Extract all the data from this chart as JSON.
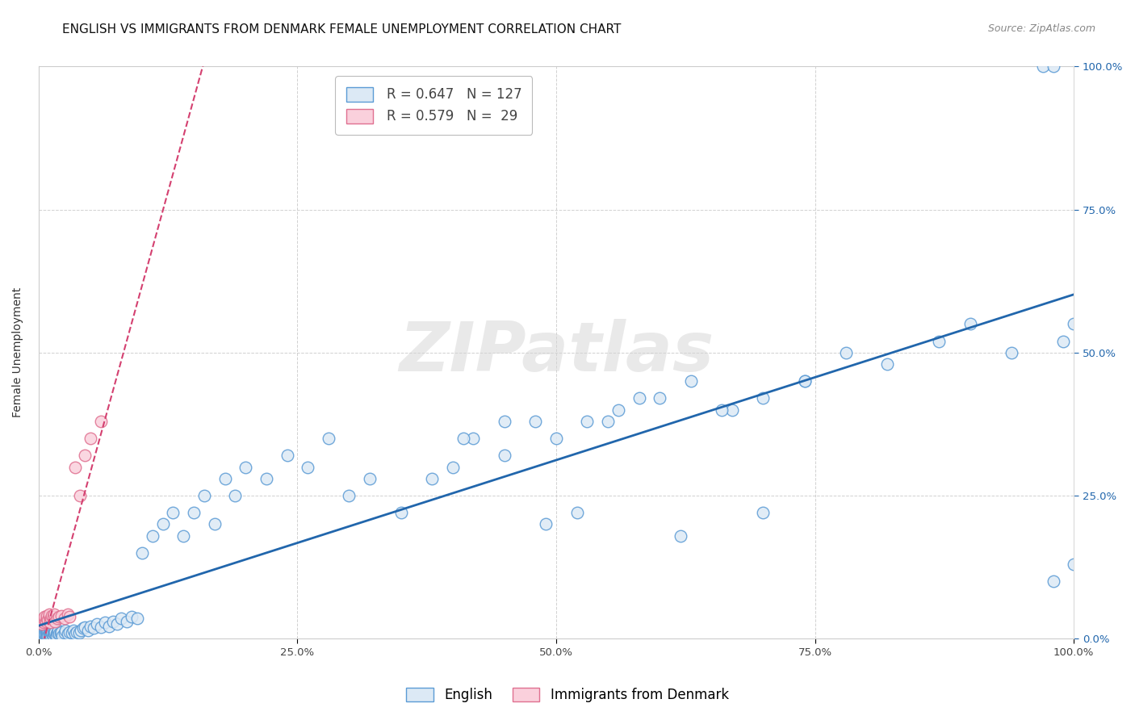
{
  "title": "ENGLISH VS IMMIGRANTS FROM DENMARK FEMALE UNEMPLOYMENT CORRELATION CHART",
  "source": "Source: ZipAtlas.com",
  "ylabel": "Female Unemployment",
  "watermark": "ZIPatlas",
  "english_R": 0.647,
  "english_N": 127,
  "denmark_R": 0.579,
  "denmark_N": 29,
  "english_edge_color": "#5b9bd5",
  "english_face_color": "#dce9f5",
  "denmark_edge_color": "#e07090",
  "denmark_face_color": "#fad0dc",
  "english_line_color": "#2166ac",
  "denmark_line_color": "#d44070",
  "background_color": "#ffffff",
  "grid_color": "#cccccc",
  "right_axis_color": "#2166ac",
  "xlim": [
    0,
    1
  ],
  "ylim": [
    0,
    1
  ],
  "title_fontsize": 11,
  "label_fontsize": 10,
  "tick_fontsize": 9.5,
  "legend_fontsize": 12,
  "source_fontsize": 9,
  "english_x": [
    0.002,
    0.003,
    0.003,
    0.004,
    0.004,
    0.004,
    0.005,
    0.005,
    0.005,
    0.005,
    0.005,
    0.006,
    0.006,
    0.006,
    0.006,
    0.007,
    0.007,
    0.007,
    0.007,
    0.008,
    0.008,
    0.008,
    0.009,
    0.009,
    0.009,
    0.01,
    0.01,
    0.01,
    0.01,
    0.011,
    0.011,
    0.012,
    0.012,
    0.012,
    0.013,
    0.013,
    0.014,
    0.014,
    0.015,
    0.015,
    0.015,
    0.016,
    0.017,
    0.017,
    0.018,
    0.019,
    0.02,
    0.021,
    0.022,
    0.023,
    0.025,
    0.026,
    0.028,
    0.03,
    0.032,
    0.034,
    0.035,
    0.037,
    0.039,
    0.041,
    0.043,
    0.045,
    0.048,
    0.05,
    0.053,
    0.056,
    0.06,
    0.064,
    0.068,
    0.072,
    0.076,
    0.08,
    0.085,
    0.09,
    0.095,
    0.1,
    0.11,
    0.12,
    0.13,
    0.14,
    0.15,
    0.16,
    0.17,
    0.18,
    0.19,
    0.2,
    0.22,
    0.24,
    0.26,
    0.28,
    0.3,
    0.32,
    0.35,
    0.38,
    0.4,
    0.42,
    0.45,
    0.48,
    0.5,
    0.53,
    0.56,
    0.6,
    0.63,
    0.67,
    0.7,
    0.74,
    0.78,
    0.82,
    0.87,
    0.9,
    0.94,
    0.97,
    0.98,
    0.98,
    0.99,
    1.0,
    1.0,
    0.41,
    0.45,
    0.49,
    0.52,
    0.55,
    0.58,
    0.62,
    0.66,
    0.7,
    0.74
  ],
  "english_y": [
    0.005,
    0.01,
    0.005,
    0.008,
    0.012,
    0.005,
    0.01,
    0.015,
    0.008,
    0.005,
    0.012,
    0.01,
    0.005,
    0.015,
    0.008,
    0.01,
    0.005,
    0.012,
    0.008,
    0.015,
    0.01,
    0.005,
    0.008,
    0.012,
    0.005,
    0.01,
    0.015,
    0.008,
    0.005,
    0.012,
    0.008,
    0.01,
    0.005,
    0.015,
    0.008,
    0.012,
    0.01,
    0.005,
    0.008,
    0.015,
    0.01,
    0.012,
    0.008,
    0.005,
    0.01,
    0.015,
    0.008,
    0.01,
    0.012,
    0.005,
    0.01,
    0.015,
    0.008,
    0.012,
    0.01,
    0.015,
    0.008,
    0.012,
    0.01,
    0.015,
    0.018,
    0.02,
    0.015,
    0.022,
    0.018,
    0.025,
    0.02,
    0.028,
    0.022,
    0.03,
    0.025,
    0.035,
    0.03,
    0.038,
    0.035,
    0.15,
    0.18,
    0.2,
    0.22,
    0.18,
    0.22,
    0.25,
    0.2,
    0.28,
    0.25,
    0.3,
    0.28,
    0.32,
    0.3,
    0.35,
    0.25,
    0.28,
    0.22,
    0.28,
    0.3,
    0.35,
    0.32,
    0.38,
    0.35,
    0.38,
    0.4,
    0.42,
    0.45,
    0.4,
    0.42,
    0.45,
    0.5,
    0.48,
    0.52,
    0.55,
    0.5,
    1.0,
    1.0,
    0.1,
    0.52,
    0.13,
    0.55,
    0.35,
    0.38,
    0.2,
    0.22,
    0.38,
    0.42,
    0.18,
    0.4,
    0.22,
    0.45
  ],
  "denmark_x": [
    0.003,
    0.004,
    0.005,
    0.005,
    0.006,
    0.006,
    0.007,
    0.008,
    0.008,
    0.009,
    0.01,
    0.01,
    0.011,
    0.012,
    0.013,
    0.014,
    0.015,
    0.016,
    0.018,
    0.02,
    0.022,
    0.025,
    0.028,
    0.03,
    0.035,
    0.04,
    0.045,
    0.05,
    0.06
  ],
  "denmark_y": [
    0.025,
    0.03,
    0.028,
    0.035,
    0.032,
    0.038,
    0.03,
    0.035,
    0.04,
    0.032,
    0.038,
    0.042,
    0.028,
    0.035,
    0.04,
    0.038,
    0.042,
    0.03,
    0.035,
    0.038,
    0.04,
    0.035,
    0.042,
    0.038,
    0.3,
    0.25,
    0.32,
    0.35,
    0.38
  ]
}
